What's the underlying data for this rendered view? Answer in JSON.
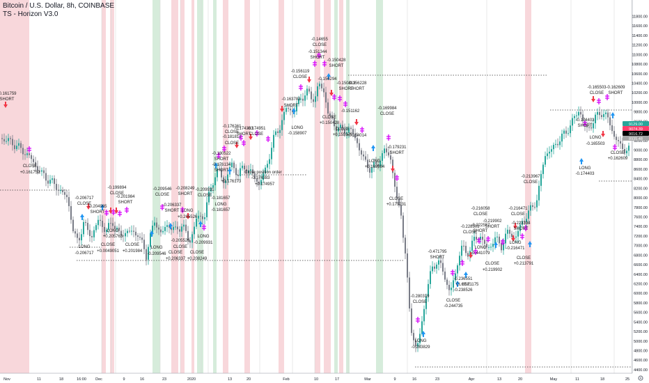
{
  "header": {
    "symbol_title": "Bitcoin / U.S. Dollar, 8h, COINBASE",
    "indicator": "TS - Horizon V3.0"
  },
  "price_axis": {
    "labels": [
      "11800.00",
      "11600.00",
      "11400.00",
      "11200.00",
      "11000.00",
      "10800.00",
      "10600.00",
      "10400.00",
      "10200.00",
      "10000.00",
      "9800.00",
      "9600.00",
      "9400.00",
      "9200.00",
      "9000.00",
      "8800.00",
      "8600.00",
      "8400.00",
      "8200.00",
      "8000.00",
      "7800.00",
      "7600.00",
      "7400.00",
      "7200.00",
      "7000.00",
      "6800.00",
      "6600.00",
      "6400.00",
      "6200.00",
      "6000.00",
      "5800.00",
      "5600.00",
      "5400.00",
      "5200.00",
      "5000.00",
      "4800.00",
      "4600.00",
      "4400.00"
    ],
    "badges": [
      {
        "text": "9129.00",
        "fill": "#26a69a"
      },
      {
        "text": "9074.39",
        "fill": "#ff3d6b"
      },
      {
        "text": "9016.72",
        "fill": "#000000"
      },
      {
        "text": "8935.48",
        "fill": "#a7a7a7"
      }
    ]
  },
  "time_axis": {
    "labels": [
      "Nov",
      "11",
      "18",
      "16:00",
      "Dec",
      "9",
      "16",
      "23",
      "2020",
      "13",
      "20",
      "Feb",
      "10",
      "17",
      "Mar",
      "9",
      "16",
      "23",
      "Apr",
      "13",
      "20",
      "May",
      "11",
      "18",
      "25"
    ]
  },
  "annotations": [
    {
      "text": "-0.161759"
    },
    {
      "text": "SHORT"
    },
    {
      "text": "CLOSE"
    },
    {
      "text": "+0.161759"
    },
    {
      "text": "-0.206717"
    },
    {
      "text": "CLOSE"
    },
    {
      "text": "LONG"
    },
    {
      "text": "-0.206717"
    },
    {
      "text": "-0.204965"
    },
    {
      "text": "SHORT"
    },
    {
      "text": "CLOSE"
    },
    {
      "text": "+0.0049051"
    },
    {
      "text": "-0.199894"
    },
    {
      "text": "CLOSE"
    },
    {
      "text": "-0.201984"
    },
    {
      "text": "SHORT"
    },
    {
      "text": "LONG"
    },
    {
      "text": "+0.205763"
    },
    {
      "text": "CLOSE"
    },
    {
      "text": "+0.201984"
    },
    {
      "text": "-0.209546"
    },
    {
      "text": "CLOSE"
    },
    {
      "text": "LONG"
    },
    {
      "text": "-0.209546"
    },
    {
      "text": "-0.206337"
    },
    {
      "text": "SHORT"
    },
    {
      "text": "-0.205526"
    },
    {
      "text": "CLOSE"
    },
    {
      "text": "-0.208249"
    },
    {
      "text": "SHORT"
    },
    {
      "text": "LONG"
    },
    {
      "text": "+0.205526"
    },
    {
      "text": "CLOSE"
    },
    {
      "text": "+0.206337"
    },
    {
      "text": "CLOSE"
    },
    {
      "text": "+0.208249"
    },
    {
      "text": "-0.209931"
    },
    {
      "text": "CLOSE"
    },
    {
      "text": "LONG"
    },
    {
      "text": "-0.209931"
    },
    {
      "text": "-0.181657"
    },
    {
      "text": "LONG"
    },
    {
      "text": "-0.181657"
    },
    {
      "text": "-0.176261"
    },
    {
      "text": "CLOSE"
    },
    {
      "text": "-0.180522"
    },
    {
      "text": "SHORT"
    },
    {
      "text": "-0.181812"
    },
    {
      "text": "CLOSE"
    },
    {
      "text": "-0.176134"
    },
    {
      "text": "SHORT"
    },
    {
      "text": "+0.176173"
    },
    {
      "text": "-0.174383"
    },
    {
      "text": "SHORT"
    },
    {
      "text": "Close position order"
    },
    {
      "text": "-0.174383"
    },
    {
      "text": "+0.174957"
    },
    {
      "text": "-0.174951"
    },
    {
      "text": "CLOSE"
    },
    {
      "text": "-0.163783"
    },
    {
      "text": "SHORT"
    },
    {
      "text": "LONG"
    },
    {
      "text": "-0.158907"
    },
    {
      "text": "-0.156119"
    },
    {
      "text": "CLOSE"
    },
    {
      "text": "-0.156294"
    },
    {
      "text": "-0.14655"
    },
    {
      "text": "CLOSE"
    },
    {
      "text": "-0.151344"
    },
    {
      "text": "SHORT"
    },
    {
      "text": "-0.150428"
    },
    {
      "text": "SHORT"
    },
    {
      "text": "CLOSE"
    },
    {
      "text": "+0.150428"
    },
    {
      "text": "-0.150813"
    },
    {
      "text": "SHORT"
    },
    {
      "text": "-0.151162"
    },
    {
      "text": "CLOSE"
    },
    {
      "text": "+0.155976"
    },
    {
      "text": "-0.156228"
    },
    {
      "text": "SHORT"
    },
    {
      "text": "+0.154014"
    },
    {
      "text": "-0.169984"
    },
    {
      "text": "CLOSE"
    },
    {
      "text": "LONG"
    },
    {
      "text": "+0.169984"
    },
    {
      "text": "-0.179231"
    },
    {
      "text": "SHORT"
    },
    {
      "text": "CLOSE"
    },
    {
      "text": "+0.179231"
    },
    {
      "text": "-0.280319"
    },
    {
      "text": "CLOSE"
    },
    {
      "text": "LONG"
    },
    {
      "text": "-0.283829"
    },
    {
      "text": "-0.471795"
    },
    {
      "text": "SHORT"
    },
    {
      "text": "CLOSE"
    },
    {
      "text": "-0.244735"
    },
    {
      "text": "-0.228501"
    },
    {
      "text": "CLOSE"
    },
    {
      "text": "-0.236551"
    },
    {
      "text": "CLOSE"
    },
    {
      "text": "-0.238526"
    },
    {
      "text": "+0.21175"
    },
    {
      "text": "-0.216058"
    },
    {
      "text": "CLOSE"
    },
    {
      "text": "-0.222557"
    },
    {
      "text": "SHORT"
    },
    {
      "text": "LONG"
    },
    {
      "text": "-0.441079"
    },
    {
      "text": "-0.219902"
    },
    {
      "text": "SHORT"
    },
    {
      "text": "CLOSE"
    },
    {
      "text": "+0.219902"
    },
    {
      "text": "LONG"
    },
    {
      "text": "-0.216471"
    },
    {
      "text": "-0.216471"
    },
    {
      "text": "CLOSE"
    },
    {
      "text": "-0.223394"
    },
    {
      "text": "SHORT"
    },
    {
      "text": "CLOSE"
    },
    {
      "text": "+0.213791"
    },
    {
      "text": "-0.213967"
    },
    {
      "text": "CLOSE"
    },
    {
      "text": "-0.165503"
    },
    {
      "text": "CLOSE"
    },
    {
      "text": "-0.162609"
    },
    {
      "text": "SHORT"
    },
    {
      "text": "-0.174403"
    },
    {
      "text": "SHORT"
    },
    {
      "text": "LONG"
    },
    {
      "text": "-0.165503"
    },
    {
      "text": "LONG"
    },
    {
      "text": "-0.174403"
    },
    {
      "text": "CLOSE"
    },
    {
      "text": "+0.162609"
    }
  ],
  "colors": {
    "up_candle": "#26a69a",
    "down_candle": "#787b86",
    "band_red": "#f5c9cf",
    "band_green": "#c8e6cf",
    "long_arrow": "#2196f3",
    "short_arrow": "#f23645",
    "close_marker": "#d500f9",
    "dotted_line": "#3a3a3a"
  }
}
